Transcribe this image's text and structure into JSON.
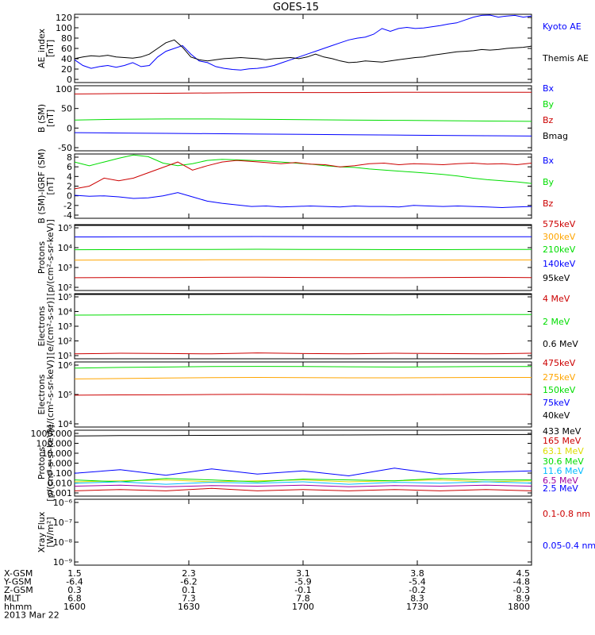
{
  "title": "GOES-15",
  "colors": {
    "black": "#000000",
    "blue": "#0000ff",
    "green": "#00dd00",
    "red": "#cc0000",
    "orange": "#ffa500",
    "cyan": "#00bbff",
    "yellow": "#dddd00",
    "crimson": "#b00000",
    "purple": "#a000a0"
  },
  "chart_data": [
    {
      "type": "line",
      "id": "ae",
      "ylabel": [
        "AE_index",
        "[nT]"
      ],
      "ylim": [
        0,
        120
      ],
      "yticks": [
        "0",
        "20",
        "40",
        "60",
        "80",
        "100",
        "120"
      ],
      "series": [
        {
          "name": "Kyoto AE",
          "color": "blue",
          "y": [
            40,
            30,
            25,
            28,
            30,
            27,
            30,
            35,
            28,
            30,
            45,
            55,
            60,
            65,
            50,
            38,
            35,
            28,
            25,
            23,
            22,
            24,
            25,
            27,
            30,
            35,
            40,
            45,
            50,
            55,
            60,
            65,
            70,
            75,
            78,
            80,
            85,
            95,
            90,
            95,
            97,
            95,
            96,
            98,
            100,
            103,
            105,
            110,
            115,
            118,
            120,
            115,
            117,
            118,
            115,
            117
          ]
        },
        {
          "name": "Themis AE",
          "color": "black",
          "y": [
            42,
            45,
            47,
            46,
            48,
            45,
            44,
            43,
            45,
            50,
            60,
            70,
            75,
            62,
            45,
            40,
            38,
            40,
            42,
            43,
            44,
            43,
            42,
            40,
            42,
            43,
            44,
            42,
            45,
            50,
            45,
            42,
            38,
            35,
            36,
            38,
            37,
            36,
            38,
            40,
            42,
            44,
            45,
            48,
            50,
            52,
            54,
            55,
            56,
            58,
            57,
            58,
            60,
            61,
            62,
            64
          ]
        }
      ]
    },
    {
      "type": "line",
      "id": "bsm",
      "ylabel": [
        "B (SM)",
        "[nT]"
      ],
      "ylim": [
        -60,
        130
      ],
      "yticks": [
        "-50",
        "0",
        "50",
        "100"
      ],
      "series": [
        {
          "name": "Bx",
          "color": "blue",
          "y": [
            -7,
            -8,
            -9,
            -10,
            -11,
            -12,
            -13,
            -14,
            -15,
            -16,
            -17
          ]
        },
        {
          "name": "By",
          "color": "green",
          "y": [
            30,
            32,
            33,
            33,
            32,
            31,
            30,
            29,
            28,
            27,
            26
          ]
        },
        {
          "name": "Bz",
          "color": "red",
          "y": [
            106,
            107,
            108,
            109,
            110,
            110,
            110,
            111,
            111,
            111,
            111
          ]
        },
        {
          "name": "Bmag",
          "color": "black",
          "y": []
        }
      ]
    },
    {
      "type": "line",
      "id": "bigrf",
      "ylabel": [
        "B (SM)-IGRF (SM)",
        "[nT]"
      ],
      "ylim": [
        -4,
        8
      ],
      "yticks": [
        "-4",
        "-2",
        "0",
        "2",
        "4",
        "6",
        "8"
      ],
      "series": [
        {
          "name": "Bx",
          "color": "blue",
          "y": [
            0.3,
            0.1,
            0.2,
            0,
            -0.3,
            -0.2,
            0.2,
            0.8,
            0,
            -0.8,
            -1.2,
            -1.5,
            -1.8,
            -1.7,
            -1.9,
            -1.8,
            -1.7,
            -1.8,
            -1.9,
            -1.7,
            -1.8,
            -1.8,
            -1.9,
            -1.6,
            -1.7,
            -1.8,
            -1.7,
            -1.8,
            -1.9,
            -2,
            -1.9,
            -1.8
          ]
        },
        {
          "name": "By",
          "color": "green",
          "y": [
            6.5,
            5.8,
            6.5,
            7.2,
            7.8,
            7.5,
            6.3,
            5.8,
            6.2,
            6.8,
            7,
            6.9,
            6.8,
            6.7,
            6.5,
            6.3,
            6.1,
            5.8,
            5.6,
            5.5,
            5.2,
            5,
            4.8,
            4.6,
            4.4,
            4.2,
            3.9,
            3.5,
            3.2,
            3,
            2.8,
            2.5
          ]
        },
        {
          "name": "Bz",
          "color": "red",
          "y": [
            1.5,
            2,
            3.5,
            3,
            3.5,
            4.5,
            5.5,
            6.5,
            5,
            5.8,
            6.5,
            6.8,
            6.6,
            6.4,
            6.2,
            6.4,
            6.1,
            6,
            5.6,
            5.8,
            6.2,
            6.3,
            6,
            6.2,
            6.1,
            6,
            6.2,
            6.3,
            6.1,
            6.2,
            6,
            6.3
          ]
        }
      ]
    },
    {
      "type": "line",
      "id": "protons_kev",
      "log": true,
      "ylabel": [
        "Protons",
        "[p/(cm²-s-sr-keV)]"
      ],
      "ylim": [
        100,
        1000000
      ],
      "yticks": [
        "10²",
        "10³",
        "10⁴",
        "10⁵"
      ],
      "series": [
        {
          "name": "575keV",
          "color": "red",
          "y": [
            600,
            620,
            610,
            630,
            640,
            620,
            610,
            600,
            620,
            630,
            610
          ]
        },
        {
          "name": "300keV",
          "color": "orange",
          "y": [
            7000,
            7100,
            7200,
            7300,
            7400,
            7300,
            7200,
            7200,
            7100,
            7200,
            7200
          ]
        },
        {
          "name": "210keV",
          "color": "green",
          "y": [
            30000,
            30500,
            31000,
            31500,
            32000,
            31500,
            31000,
            30500,
            30500,
            31000,
            31000
          ]
        },
        {
          "name": "140keV",
          "color": "blue",
          "y": [
            180000,
            182000,
            185000,
            187000,
            190000,
            187000,
            185000,
            183000,
            183000,
            185000,
            185000
          ]
        },
        {
          "name": "95keV",
          "color": "black",
          "y": [
            900000,
            910000,
            920000,
            930000,
            950000,
            930000,
            920000,
            910000,
            910000,
            920000,
            920000
          ]
        }
      ]
    },
    {
      "type": "line",
      "id": "electrons_mev",
      "log": true,
      "ylabel": [
        "Electrons",
        "[e/(cm²-s-sr)]"
      ],
      "ylim": [
        10,
        100000
      ],
      "yticks": [
        "10¹",
        "10²",
        "10³",
        "10⁴",
        "10⁵"
      ],
      "series": [
        {
          "name": "4 MeV",
          "color": "red",
          "y": [
            20,
            22,
            21,
            20,
            23,
            21,
            20,
            22,
            21,
            20,
            22
          ]
        },
        {
          "name": "2 MeV",
          "color": "green",
          "y": [
            4800,
            5000,
            5100,
            5200,
            5300,
            5200,
            5100,
            5000,
            5100,
            5200,
            5200
          ]
        },
        {
          "name": "0.6 MeV",
          "color": "black",
          "y": [
            95000,
            96000,
            97000,
            98000,
            98000,
            97000,
            96000,
            96000,
            97000,
            97000,
            98000
          ]
        }
      ]
    },
    {
      "type": "line",
      "id": "electrons_kev",
      "log": true,
      "ylabel": [
        "Electrons",
        "[e/(cm²-s-sr-keV)]"
      ],
      "ylim": [
        10000,
        1000000
      ],
      "yticks": [
        "10⁴",
        "10⁵",
        "10⁶"
      ],
      "series": [
        {
          "name": "475keV",
          "color": "red",
          "y": [
            95000,
            97000,
            98000,
            100000,
            101000,
            100000,
            99000,
            99000,
            100000,
            101000,
            101000
          ]
        },
        {
          "name": "275keV",
          "color": "orange",
          "y": [
            300000,
            310000,
            320000,
            330000,
            335000,
            330000,
            325000,
            325000,
            330000,
            335000,
            335000
          ]
        },
        {
          "name": "150keV",
          "color": "green",
          "y": [
            650000,
            680000,
            700000,
            720000,
            730000,
            720000,
            710000,
            700000,
            710000,
            720000,
            720000
          ]
        },
        {
          "name": "75keV",
          "color": "blue",
          "y": []
        },
        {
          "name": "40keV",
          "color": "black",
          "y": []
        }
      ]
    },
    {
      "type": "line",
      "id": "protons_mev",
      "log": true,
      "ylabel": [
        "Protons",
        "[p/(cm²-s-sr-keV)]"
      ],
      "ylim": [
        0.001,
        1000
      ],
      "yticks": [
        "0.001",
        "0.010",
        "0.100",
        "1.000",
        "10.000",
        "100.000",
        "1000.000"
      ],
      "series": [
        {
          "name": "433 MeV",
          "color": "black",
          "y": [
            300,
            320,
            330,
            340,
            350,
            360,
            370,
            380,
            390,
            400,
            410
          ]
        },
        {
          "name": "165 MeV",
          "color": "red",
          "y": [
            0.003,
            0.004,
            0.003,
            0.005,
            0.003,
            0.004,
            0.003,
            0.004,
            0.003,
            0.004,
            0.003
          ]
        },
        {
          "name": "63.1 MeV",
          "color": "yellow",
          "y": [
            0.02,
            0.025,
            0.03,
            0.02,
            0.025,
            0.03,
            0.02,
            0.025,
            0.03,
            0.02,
            0.025
          ]
        },
        {
          "name": "30.6 MeV",
          "color": "green",
          "y": [
            0.03,
            0.02,
            0.04,
            0.03,
            0.02,
            0.035,
            0.03,
            0.025,
            0.04,
            0.03,
            0.03
          ]
        },
        {
          "name": "11.6 MeV",
          "color": "cyan",
          "y": [
            0.015,
            0.02,
            0.012,
            0.018,
            0.015,
            0.02,
            0.012,
            0.018,
            0.015,
            0.02,
            0.015
          ]
        },
        {
          "name": "6.5 MeV",
          "color": "purple",
          "y": [
            0.008,
            0.01,
            0.007,
            0.009,
            0.008,
            0.01,
            0.007,
            0.009,
            0.008,
            0.01,
            0.008
          ]
        },
        {
          "name": "2.5 MeV",
          "color": "blue",
          "y": [
            0.12,
            0.25,
            0.08,
            0.3,
            0.1,
            0.2,
            0.07,
            0.35,
            0.1,
            0.15,
            0.2
          ]
        }
      ]
    },
    {
      "type": "line",
      "id": "xray",
      "log": true,
      "ylabel": [
        "Xray Flux",
        "[W/m²]"
      ],
      "ylim": [
        1e-09,
        1e-08
      ],
      "yticks": [
        "10⁻⁹",
        "10⁻⁸",
        "10⁻⁷",
        "10⁻⁶"
      ],
      "series": [
        {
          "name": "0.1-0.8 nm",
          "color": "red",
          "y": []
        },
        {
          "name": "0.05-0.4 nm",
          "color": "blue",
          "y": []
        }
      ]
    }
  ],
  "footer": {
    "rows": [
      {
        "label": "X-GSM",
        "values": [
          "1.5",
          "2.3",
          "3.1",
          "3.8",
          "4.5"
        ]
      },
      {
        "label": "Y-GSM",
        "values": [
          "-6.4",
          "-6.2",
          "-5.9",
          "-5.4",
          "-4.8"
        ]
      },
      {
        "label": "Z-GSM",
        "values": [
          "0.3",
          "0.1",
          "-0.1",
          "-0.2",
          "-0.3"
        ]
      },
      {
        "label": "MLT",
        "values": [
          "6.8",
          "7.3",
          "7.8",
          "8.3",
          "8.9"
        ]
      },
      {
        "label": "hhmm",
        "values": [
          "1600",
          "1630",
          "1700",
          "1730",
          "1800"
        ]
      }
    ],
    "date": "2013 Mar 22"
  }
}
